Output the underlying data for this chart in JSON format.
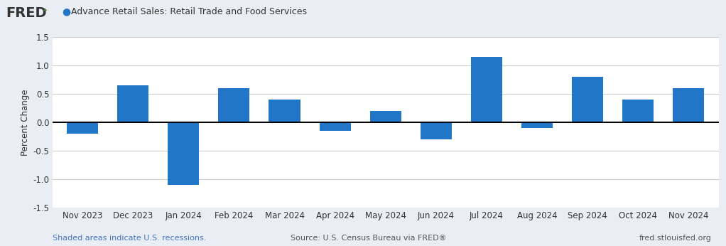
{
  "categories": [
    "Nov 2023",
    "Dec 2023",
    "Jan 2024",
    "Feb 2024",
    "Mar 2024",
    "Apr 2024",
    "May 2024",
    "Jun 2024",
    "Jul 2024",
    "Aug 2024",
    "Sep 2024",
    "Oct 2024",
    "Nov 2024"
  ],
  "values": [
    -0.2,
    0.65,
    -1.1,
    0.6,
    0.4,
    -0.15,
    0.2,
    -0.3,
    1.15,
    -0.1,
    0.8,
    0.4,
    0.6
  ],
  "bar_color": "#2176C7",
  "background_color": "#E8EEF4",
  "plot_bg_color": "#FFFFFF",
  "ylim": [
    -1.5,
    1.5
  ],
  "yticks": [
    -1.5,
    -1.0,
    -0.5,
    0.0,
    0.5,
    1.0,
    1.5
  ],
  "ylabel": "Percent Change",
  "legend_dot_color": "#2176C7",
  "legend_text": "Advance Retail Sales: Retail Trade and Food Services",
  "source_text": "Source: U.S. Census Bureau via FRED®",
  "shaded_text": "Shaded areas indicate U.S. recessions.",
  "site_text": "fred.stlouisfed.org",
  "header_bg_color": "#E8EEF4",
  "grid_color": "#CCCCCC",
  "zero_line_color": "#000000",
  "tick_fontsize": 8.5,
  "axis_label_fontsize": 8.5,
  "legend_fontsize": 9,
  "footer_fontsize": 8
}
